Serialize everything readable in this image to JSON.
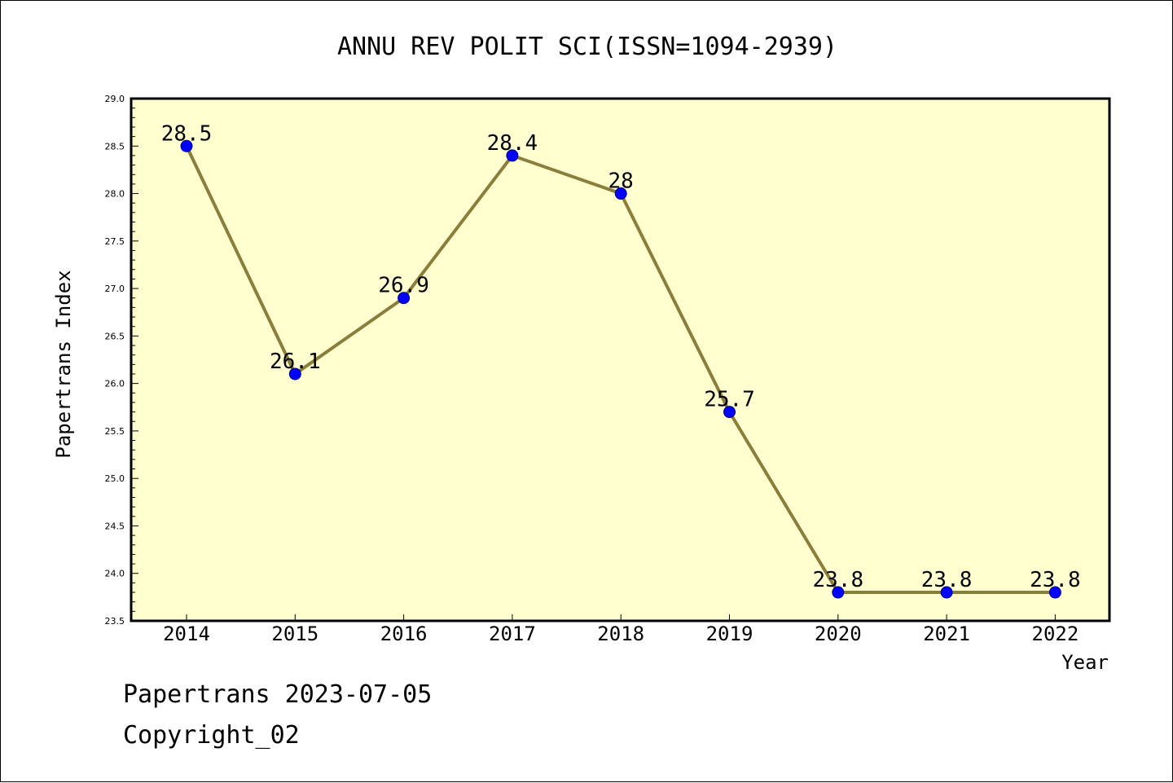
{
  "chart_data": {
    "type": "line",
    "title": "ANNU REV POLIT SCI(ISSN=1094-2939)",
    "xlabel": "Year",
    "ylabel": "Papertrans Index",
    "categories": [
      "2014",
      "2015",
      "2016",
      "2017",
      "2018",
      "2019",
      "2020",
      "2021",
      "2022"
    ],
    "series": [
      {
        "values": [
          28.5,
          26.1,
          26.9,
          28.4,
          28.0,
          25.7,
          23.8,
          23.8,
          23.8
        ],
        "labels": [
          "28.5",
          "26.1",
          "26.9",
          "28.4",
          "28",
          "25.7",
          "23.8",
          "23.8",
          "23.8"
        ]
      }
    ],
    "ylim": [
      23.5,
      29.0
    ],
    "yticks": [
      "23.5",
      "24.0",
      "24.5",
      "25.0",
      "25.5",
      "26.0",
      "26.5",
      "27.0",
      "27.5",
      "28.0",
      "28.5",
      "29.0"
    ],
    "grid": false,
    "legend": false,
    "colors": {
      "plot_background": "#ffffd0",
      "line": "#8b7d3a",
      "marker_fill": "#0000ff",
      "marker_stroke": "#000080"
    }
  },
  "footer": {
    "line1": "Papertrans 2023-07-05",
    "line2": "Copyright_02"
  }
}
